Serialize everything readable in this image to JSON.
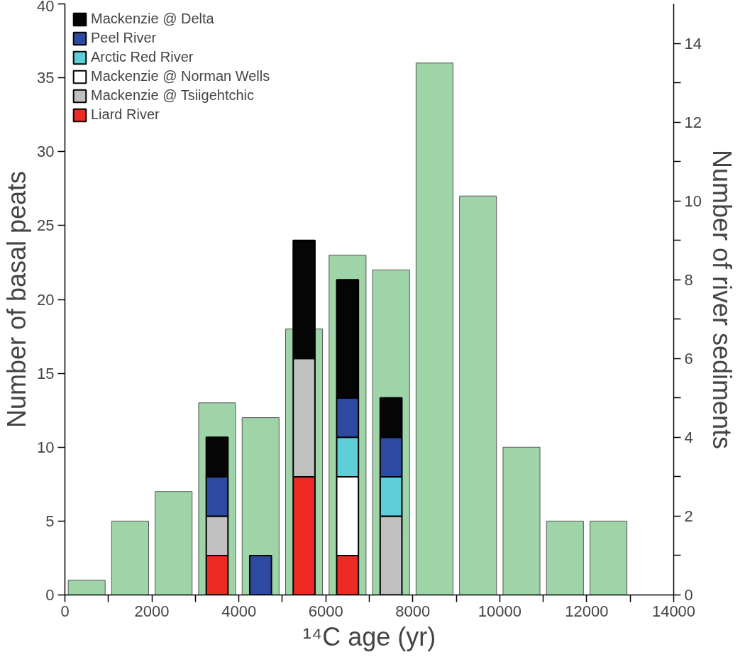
{
  "chart_data": {
    "type": "bar",
    "xlabel": "¹⁴C age (yr)",
    "ylabel": "Number of basal peats",
    "y2label": "Number of river sediments",
    "stacked": true,
    "legend": "top left",
    "grid": false,
    "series": [
      {
        "color": "#9fd4a8",
        "x": [
          500,
          1500,
          2500,
          3500,
          4500,
          5500,
          6500,
          7500,
          8500,
          9500,
          10500,
          11500,
          12500
        ],
        "values": [
          1,
          5,
          7,
          13,
          12,
          18,
          23,
          22,
          36,
          27,
          10,
          5,
          5
        ]
      },
      {
        "axis": "y2",
        "name": "Liard River",
        "color": "#ee2a24",
        "x": [
          3500,
          4500,
          5500,
          6500,
          7500
        ],
        "values": [
          1,
          0,
          3,
          1,
          0
        ]
      },
      {
        "axis": "y2",
        "name": "Mackenzie @ Tsiigehtchic",
        "color": "#c0c0c0",
        "x": [
          3500,
          4500,
          5500,
          6500,
          7500
        ],
        "values": [
          1,
          0,
          3,
          0,
          2
        ]
      },
      {
        "axis": "y2",
        "name": "Mackenzie @ Norman Wells",
        "color": "#ffffff",
        "x": [
          3500,
          4500,
          5500,
          6500,
          7500
        ],
        "values": [
          0,
          0,
          0,
          2,
          0
        ]
      },
      {
        "axis": "y2",
        "name": "Arctic Red River",
        "color": "#5ecfd8",
        "x": [
          3500,
          4500,
          5500,
          6500,
          7500
        ],
        "values": [
          0,
          0,
          0,
          1,
          1
        ]
      },
      {
        "axis": "y2",
        "name": "Peel River",
        "color": "#2e4aa0",
        "x": [
          3500,
          4500,
          5500,
          6500,
          7500
        ],
        "values": [
          1,
          1,
          0,
          1,
          1
        ]
      },
      {
        "axis": "y2",
        "name": "Mackenzie @ Delta",
        "color": "#050505",
        "x": [
          3500,
          4500,
          5500,
          6500,
          7500
        ],
        "values": [
          1,
          0,
          3,
          3,
          1
        ]
      }
    ],
    "xlim": [
      0,
      14000
    ],
    "xticks": [
      0,
      {
        "value": 1000,
        "label": null
      },
      2000,
      {
        "value": 3000,
        "label": null
      },
      4000,
      {
        "value": 5000,
        "label": null
      },
      6000,
      {
        "value": 7000,
        "label": null
      },
      8000,
      {
        "value": 9000,
        "label": null
      },
      10000,
      {
        "value": 11000,
        "label": null
      },
      12000,
      {
        "value": 13000,
        "label": null
      },
      14000
    ],
    "ylim": [
      0,
      40
    ],
    "yticks": [
      0,
      5,
      10,
      15,
      20,
      25,
      30,
      35,
      40
    ],
    "y2lim": [
      0,
      15
    ],
    "y2ticks": [
      0,
      {
        "value": 1,
        "label": null
      },
      2,
      {
        "value": 3,
        "label": null
      },
      4,
      {
        "value": 5,
        "label": null
      },
      6,
      {
        "value": 7,
        "label": null
      },
      8,
      {
        "value": 9,
        "label": null
      },
      10,
      {
        "value": 11,
        "label": null
      },
      12,
      {
        "value": 13,
        "label": null
      },
      14
    ]
  }
}
